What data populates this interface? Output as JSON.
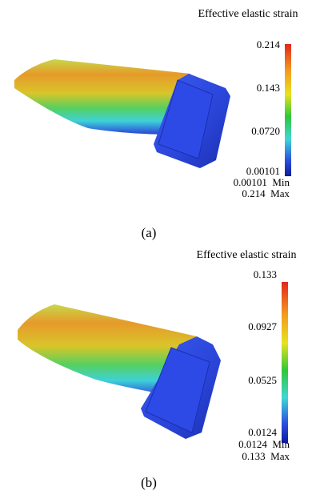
{
  "panels": [
    {
      "legend_title": "Effective elastic strain",
      "colorbar_labels": [
        "0.214",
        "0.143",
        "0.0720",
        "0.00101"
      ],
      "min_label": "0.00101  Min",
      "max_label": "0.214  Max",
      "caption": "(a)"
    },
    {
      "legend_title": "Effective elastic strain",
      "colorbar_labels": [
        "0.133",
        "0.0927",
        "0.0525",
        "0.0124"
      ],
      "min_label": "0.0124  Min",
      "max_label": "0.133  Max",
      "caption": "(b)"
    }
  ]
}
